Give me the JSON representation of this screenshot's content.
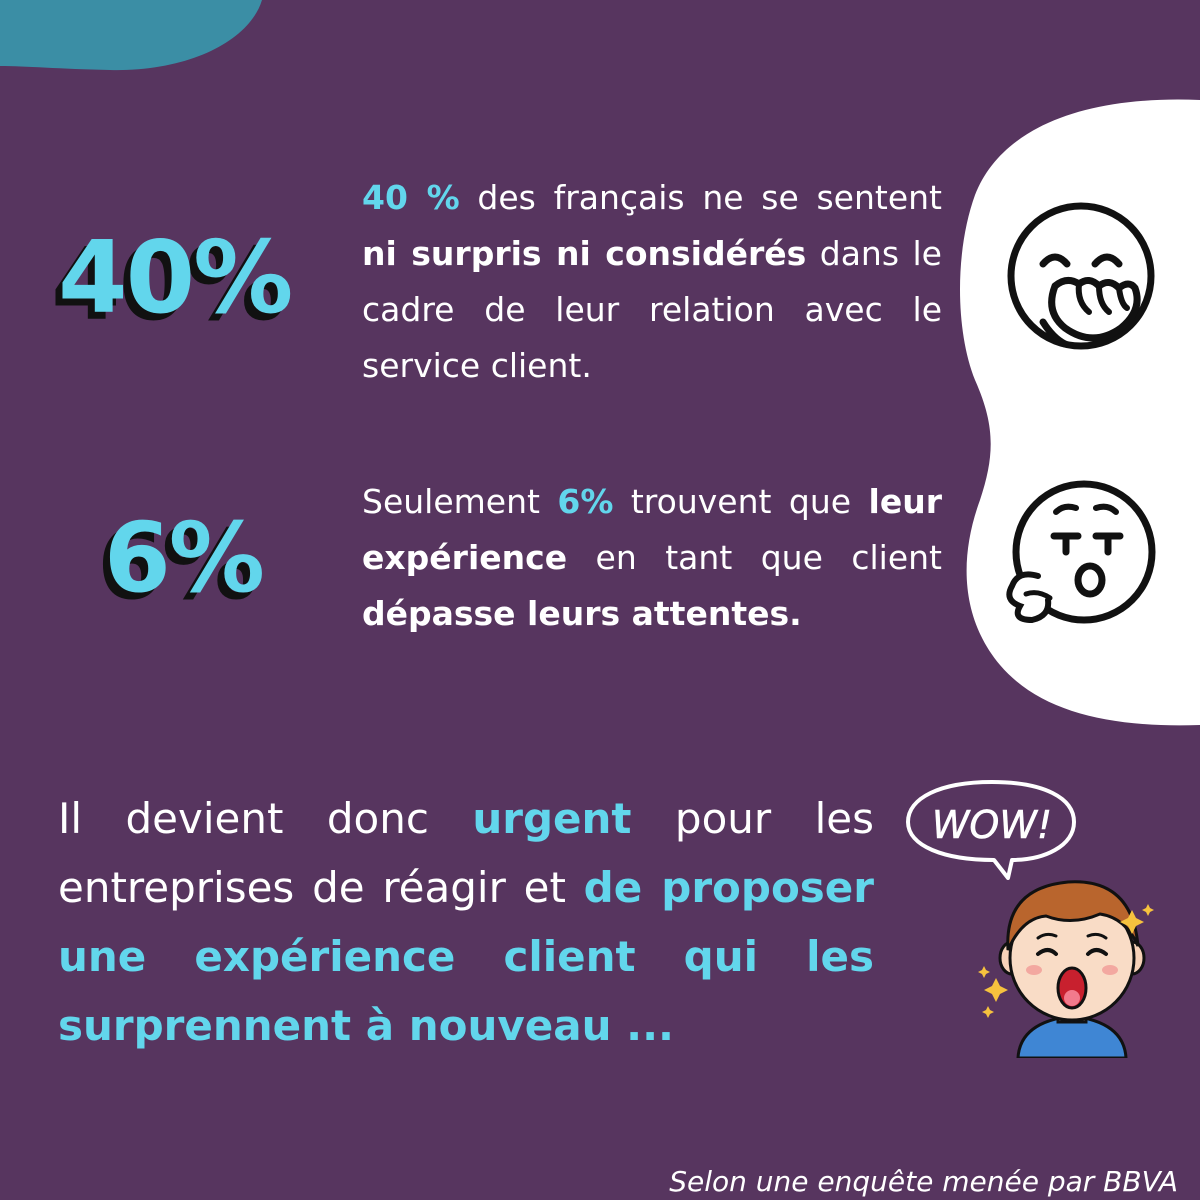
{
  "colors": {
    "background": "#57355f",
    "accent": "#62d6ec",
    "corner_blob": "#3b8ea5",
    "panel": "#ffffff"
  },
  "stat1": {
    "big": "40%",
    "hl": "40 %",
    "t1": " des français ne se sentent ",
    "bold": "ni surpris ni considérés",
    "t2": " dans le cadre de leur relation avec le service client.",
    "icon": "yawning-face-icon"
  },
  "stat2": {
    "big": "6%",
    "t1": "Seulement ",
    "hl": "6%",
    "t2": " trouvent que ",
    "bold1": "leur expérience",
    "t3": " en tant que client ",
    "bold2": "dépasse leurs attentes.",
    "icon": "sighing-face-icon"
  },
  "conclusion": {
    "t1": "Il devient donc ",
    "hl1": "urgent",
    "t2": " pour les entreprises de réagir et ",
    "hl2": "de proposer une expérience client qui les surprennent à nouveau ...",
    "bubble": "WOW!",
    "icon": "surprised-boy-icon"
  },
  "source": "Selon une enquête menée par BBVA"
}
